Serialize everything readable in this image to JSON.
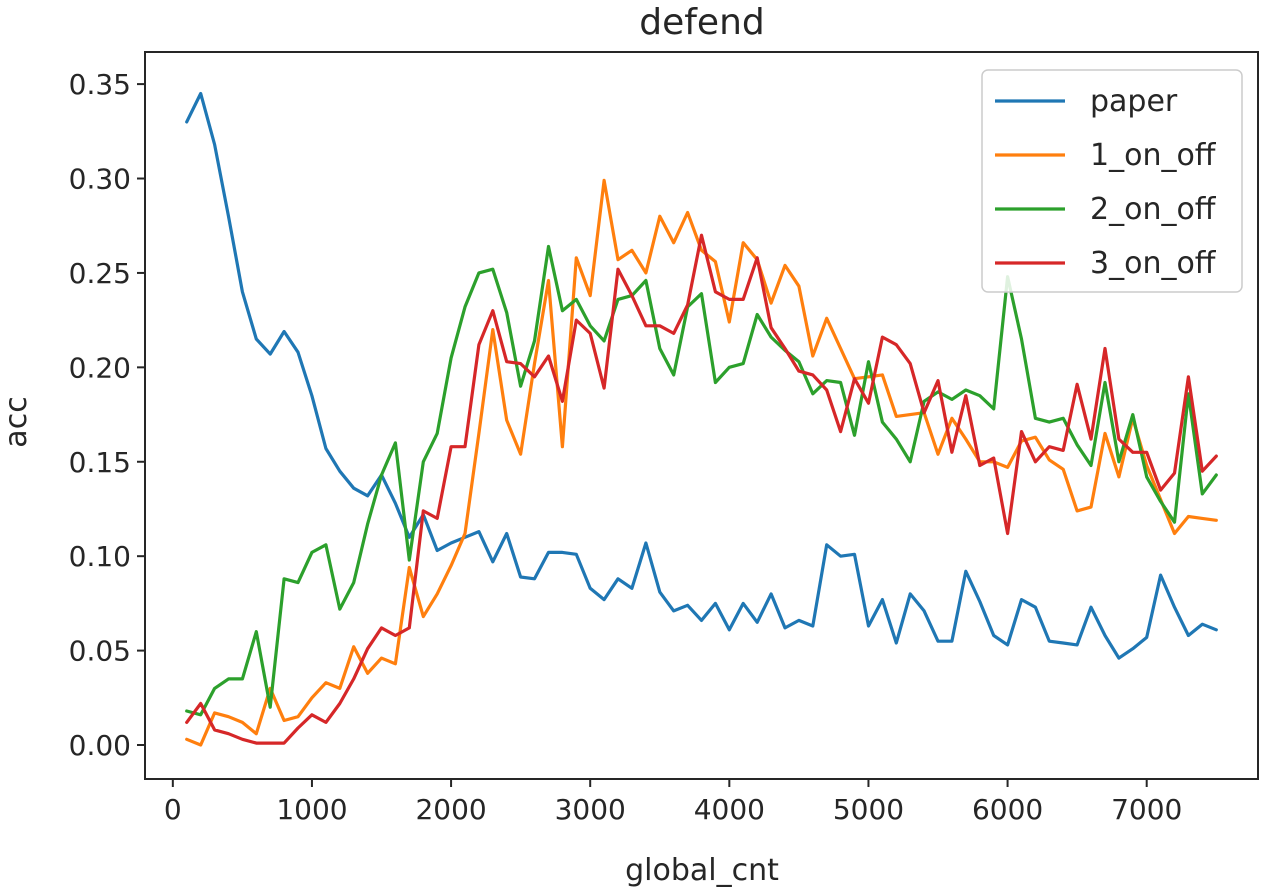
{
  "chart_data": {
    "type": "line",
    "title": "defend",
    "xlabel": "global_cnt",
    "ylabel": "acc",
    "xlim": [
      -200,
      7800
    ],
    "ylim": [
      -0.018,
      0.367
    ],
    "xticks": [
      0,
      1000,
      2000,
      3000,
      4000,
      5000,
      6000,
      7000
    ],
    "yticks": [
      0.0,
      0.05,
      0.1,
      0.15,
      0.2,
      0.25,
      0.3,
      0.35
    ],
    "xtick_labels": [
      "0",
      "1000",
      "2000",
      "3000",
      "4000",
      "5000",
      "6000",
      "7000"
    ],
    "ytick_labels": [
      "0.00",
      "0.05",
      "0.10",
      "0.15",
      "0.20",
      "0.25",
      "0.30",
      "0.35"
    ],
    "grid": false,
    "legend_position": "top-right",
    "x": [
      100,
      200,
      300,
      400,
      500,
      600,
      700,
      800,
      900,
      1000,
      1100,
      1200,
      1300,
      1400,
      1500,
      1600,
      1700,
      1800,
      1900,
      2000,
      2100,
      2200,
      2300,
      2400,
      2500,
      2600,
      2700,
      2800,
      2900,
      3000,
      3100,
      3200,
      3300,
      3400,
      3500,
      3600,
      3700,
      3800,
      3900,
      4000,
      4100,
      4200,
      4300,
      4400,
      4500,
      4600,
      4700,
      4800,
      4900,
      5000,
      5100,
      5200,
      5300,
      5400,
      5500,
      5600,
      5700,
      5800,
      5900,
      6000,
      6100,
      6200,
      6300,
      6400,
      6500,
      6600,
      6700,
      6800,
      6900,
      7000,
      7100,
      7200,
      7300,
      7400,
      7500
    ],
    "series": [
      {
        "name": "paper",
        "color": "#1f77b4",
        "values": [
          0.33,
          0.345,
          0.318,
          0.28,
          0.24,
          0.215,
          0.207,
          0.219,
          0.208,
          0.185,
          0.157,
          0.145,
          0.136,
          0.132,
          0.143,
          0.128,
          0.11,
          0.122,
          0.103,
          0.107,
          0.11,
          0.113,
          0.097,
          0.112,
          0.089,
          0.088,
          0.102,
          0.102,
          0.101,
          0.083,
          0.077,
          0.088,
          0.083,
          0.107,
          0.081,
          0.071,
          0.074,
          0.066,
          0.075,
          0.061,
          0.075,
          0.065,
          0.08,
          0.062,
          0.066,
          0.063,
          0.106,
          0.1,
          0.101,
          0.063,
          0.077,
          0.054,
          0.08,
          0.071,
          0.055,
          0.055,
          0.092,
          0.076,
          0.058,
          0.053,
          0.077,
          0.073,
          0.055,
          0.054,
          0.053,
          0.073,
          0.058,
          0.046,
          0.051,
          0.057,
          0.09,
          0.073,
          0.058,
          0.064,
          0.061
        ]
      },
      {
        "name": "1_on_off",
        "color": "#ff7f0e",
        "values": [
          0.003,
          0.0,
          0.017,
          0.015,
          0.012,
          0.006,
          0.03,
          0.013,
          0.015,
          0.025,
          0.033,
          0.03,
          0.052,
          0.038,
          0.046,
          0.043,
          0.094,
          0.068,
          0.08,
          0.095,
          0.112,
          0.165,
          0.22,
          0.172,
          0.154,
          0.202,
          0.246,
          0.158,
          0.258,
          0.238,
          0.299,
          0.257,
          0.262,
          0.25,
          0.28,
          0.266,
          0.282,
          0.262,
          0.256,
          0.224,
          0.266,
          0.257,
          0.234,
          0.254,
          0.243,
          0.206,
          0.226,
          0.21,
          0.194,
          0.195,
          0.196,
          0.174,
          0.175,
          0.176,
          0.154,
          0.173,
          0.162,
          0.15,
          0.15,
          0.147,
          0.161,
          0.163,
          0.151,
          0.146,
          0.124,
          0.126,
          0.165,
          0.142,
          0.173,
          0.148,
          0.13,
          0.112,
          0.121,
          0.12,
          0.119
        ]
      },
      {
        "name": "2_on_off",
        "color": "#2ca02c",
        "values": [
          0.018,
          0.016,
          0.03,
          0.035,
          0.035,
          0.06,
          0.02,
          0.088,
          0.086,
          0.102,
          0.106,
          0.072,
          0.086,
          0.117,
          0.143,
          0.16,
          0.098,
          0.15,
          0.165,
          0.205,
          0.232,
          0.25,
          0.252,
          0.229,
          0.19,
          0.214,
          0.264,
          0.23,
          0.236,
          0.222,
          0.214,
          0.236,
          0.238,
          0.246,
          0.21,
          0.196,
          0.232,
          0.239,
          0.192,
          0.2,
          0.202,
          0.228,
          0.216,
          0.209,
          0.203,
          0.186,
          0.193,
          0.192,
          0.164,
          0.203,
          0.171,
          0.162,
          0.15,
          0.182,
          0.187,
          0.183,
          0.188,
          0.185,
          0.178,
          0.248,
          0.215,
          0.173,
          0.171,
          0.173,
          0.159,
          0.148,
          0.192,
          0.15,
          0.175,
          0.142,
          0.129,
          0.118,
          0.186,
          0.133,
          0.143
        ]
      },
      {
        "name": "3_on_off",
        "color": "#d62728",
        "values": [
          0.012,
          0.022,
          0.008,
          0.006,
          0.003,
          0.001,
          0.001,
          0.001,
          0.009,
          0.016,
          0.012,
          0.022,
          0.035,
          0.051,
          0.062,
          0.058,
          0.062,
          0.124,
          0.12,
          0.158,
          0.158,
          0.212,
          0.23,
          0.203,
          0.202,
          0.195,
          0.206,
          0.182,
          0.225,
          0.218,
          0.189,
          0.252,
          0.238,
          0.222,
          0.222,
          0.218,
          0.233,
          0.27,
          0.24,
          0.236,
          0.236,
          0.258,
          0.221,
          0.21,
          0.198,
          0.196,
          0.188,
          0.166,
          0.194,
          0.181,
          0.216,
          0.212,
          0.202,
          0.176,
          0.193,
          0.155,
          0.185,
          0.148,
          0.152,
          0.112,
          0.166,
          0.15,
          0.158,
          0.156,
          0.191,
          0.162,
          0.21,
          0.162,
          0.155,
          0.155,
          0.135,
          0.144,
          0.195,
          0.145,
          0.153
        ]
      }
    ]
  }
}
